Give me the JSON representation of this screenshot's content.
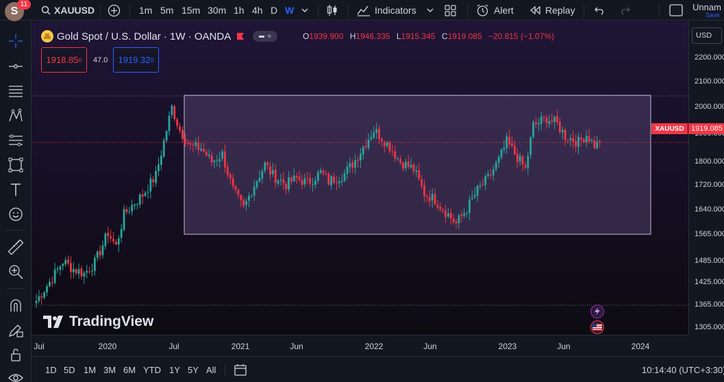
{
  "topbar": {
    "avatar_letter": "S",
    "avatar_badge": "11",
    "symbol": "XAUUSD",
    "timeframes": [
      "1m",
      "5m",
      "15m",
      "30m",
      "1h",
      "4h",
      "D",
      "W"
    ],
    "active_timeframe": "W",
    "indicators_label": "Indicators",
    "alert_label": "Alert",
    "replay_label": "Replay",
    "layout_name": "Unnam",
    "save_label": "Save"
  },
  "legend": {
    "title": "Gold Spot / U.S. Dollar · 1W · OANDA",
    "open_key": "O",
    "open": "1939.900",
    "high_key": "H",
    "high": "1946.335",
    "low_key": "L",
    "low": "1915.345",
    "close_key": "C",
    "close": "1919.085",
    "change": "−20.815 (−1.07%)",
    "sell_main": "1918.85",
    "sell_small": "0",
    "spread": "47.0",
    "buy_main": "1919.32",
    "buy_small": "0"
  },
  "price_scale": {
    "currency": "USD",
    "ticks": [
      "2200.000",
      "2100.000",
      "2000.000",
      "1900.000",
      "1800.000",
      "1720.000",
      "1640.000",
      "1565.000",
      "1485.000",
      "1425.000",
      "1365.000",
      "1305.000"
    ],
    "last_price": "1919.085",
    "symbol_tag": "XAUUSD"
  },
  "time_axis": {
    "ticks": [
      "Jul",
      "2020",
      "Jul",
      "2021",
      "Jun",
      "2022",
      "Jun",
      "2023",
      "Jun",
      "2024"
    ]
  },
  "bottom": {
    "ranges": [
      "1D",
      "5D",
      "1M",
      "3M",
      "6M",
      "YTD",
      "1Y",
      "5Y",
      "All"
    ],
    "clock": "10:14:40 (UTC+3:30)"
  },
  "watermark": "TradingView",
  "colors": {
    "up": "#26a69a",
    "down": "#f23645",
    "accent": "#2962ff",
    "rectangle_fill": "#5c4a78",
    "rectangle_border": "#c6b8d9"
  },
  "chart_data": {
    "type": "candlestick",
    "symbol": "XAUUSD",
    "interval": "1W",
    "ylim": [
      1290,
      2240
    ],
    "rectangle": {
      "from": "2020-07",
      "to": "2023-11",
      "top": 2075,
      "bottom": 1615
    },
    "waypoints": [
      {
        "t": 0,
        "p": 1395
      },
      {
        "t": 6,
        "p": 1470
      },
      {
        "t": 10,
        "p": 1525
      },
      {
        "t": 14,
        "p": 1500
      },
      {
        "t": 18,
        "p": 1485
      },
      {
        "t": 22,
        "p": 1520
      },
      {
        "t": 27,
        "p": 1620
      },
      {
        "t": 30,
        "p": 1575
      },
      {
        "t": 33,
        "p": 1680
      },
      {
        "t": 37,
        "p": 1720
      },
      {
        "t": 40,
        "p": 1745
      },
      {
        "t": 45,
        "p": 1810
      },
      {
        "t": 49,
        "p": 1960
      },
      {
        "t": 51,
        "p": 2035
      },
      {
        "t": 54,
        "p": 1960
      },
      {
        "t": 58,
        "p": 1905
      },
      {
        "t": 62,
        "p": 1900
      },
      {
        "t": 66,
        "p": 1855
      },
      {
        "t": 70,
        "p": 1880
      },
      {
        "t": 74,
        "p": 1760
      },
      {
        "t": 78,
        "p": 1700
      },
      {
        "t": 82,
        "p": 1780
      },
      {
        "t": 86,
        "p": 1845
      },
      {
        "t": 89,
        "p": 1810
      },
      {
        "t": 94,
        "p": 1780
      },
      {
        "t": 98,
        "p": 1800
      },
      {
        "t": 102,
        "p": 1785
      },
      {
        "t": 107,
        "p": 1820
      },
      {
        "t": 110,
        "p": 1790
      },
      {
        "t": 116,
        "p": 1815
      },
      {
        "t": 120,
        "p": 1860
      },
      {
        "t": 124,
        "p": 1920
      },
      {
        "t": 127,
        "p": 1960
      },
      {
        "t": 130,
        "p": 1935
      },
      {
        "t": 133,
        "p": 1905
      },
      {
        "t": 137,
        "p": 1855
      },
      {
        "t": 142,
        "p": 1830
      },
      {
        "t": 146,
        "p": 1750
      },
      {
        "t": 150,
        "p": 1730
      },
      {
        "t": 155,
        "p": 1680
      },
      {
        "t": 158,
        "p": 1650
      },
      {
        "t": 162,
        "p": 1700
      },
      {
        "t": 166,
        "p": 1760
      },
      {
        "t": 170,
        "p": 1800
      },
      {
        "t": 174,
        "p": 1860
      },
      {
        "t": 177,
        "p": 1920
      },
      {
        "t": 181,
        "p": 1870
      },
      {
        "t": 184,
        "p": 1830
      },
      {
        "t": 187,
        "p": 1975
      },
      {
        "t": 192,
        "p": 2000
      },
      {
        "t": 196,
        "p": 1980
      },
      {
        "t": 199,
        "p": 1940
      },
      {
        "t": 204,
        "p": 1920
      },
      {
        "t": 207,
        "p": 1945
      },
      {
        "t": 210,
        "p": 1910
      },
      {
        "t": 212,
        "p": 1915
      }
    ]
  }
}
